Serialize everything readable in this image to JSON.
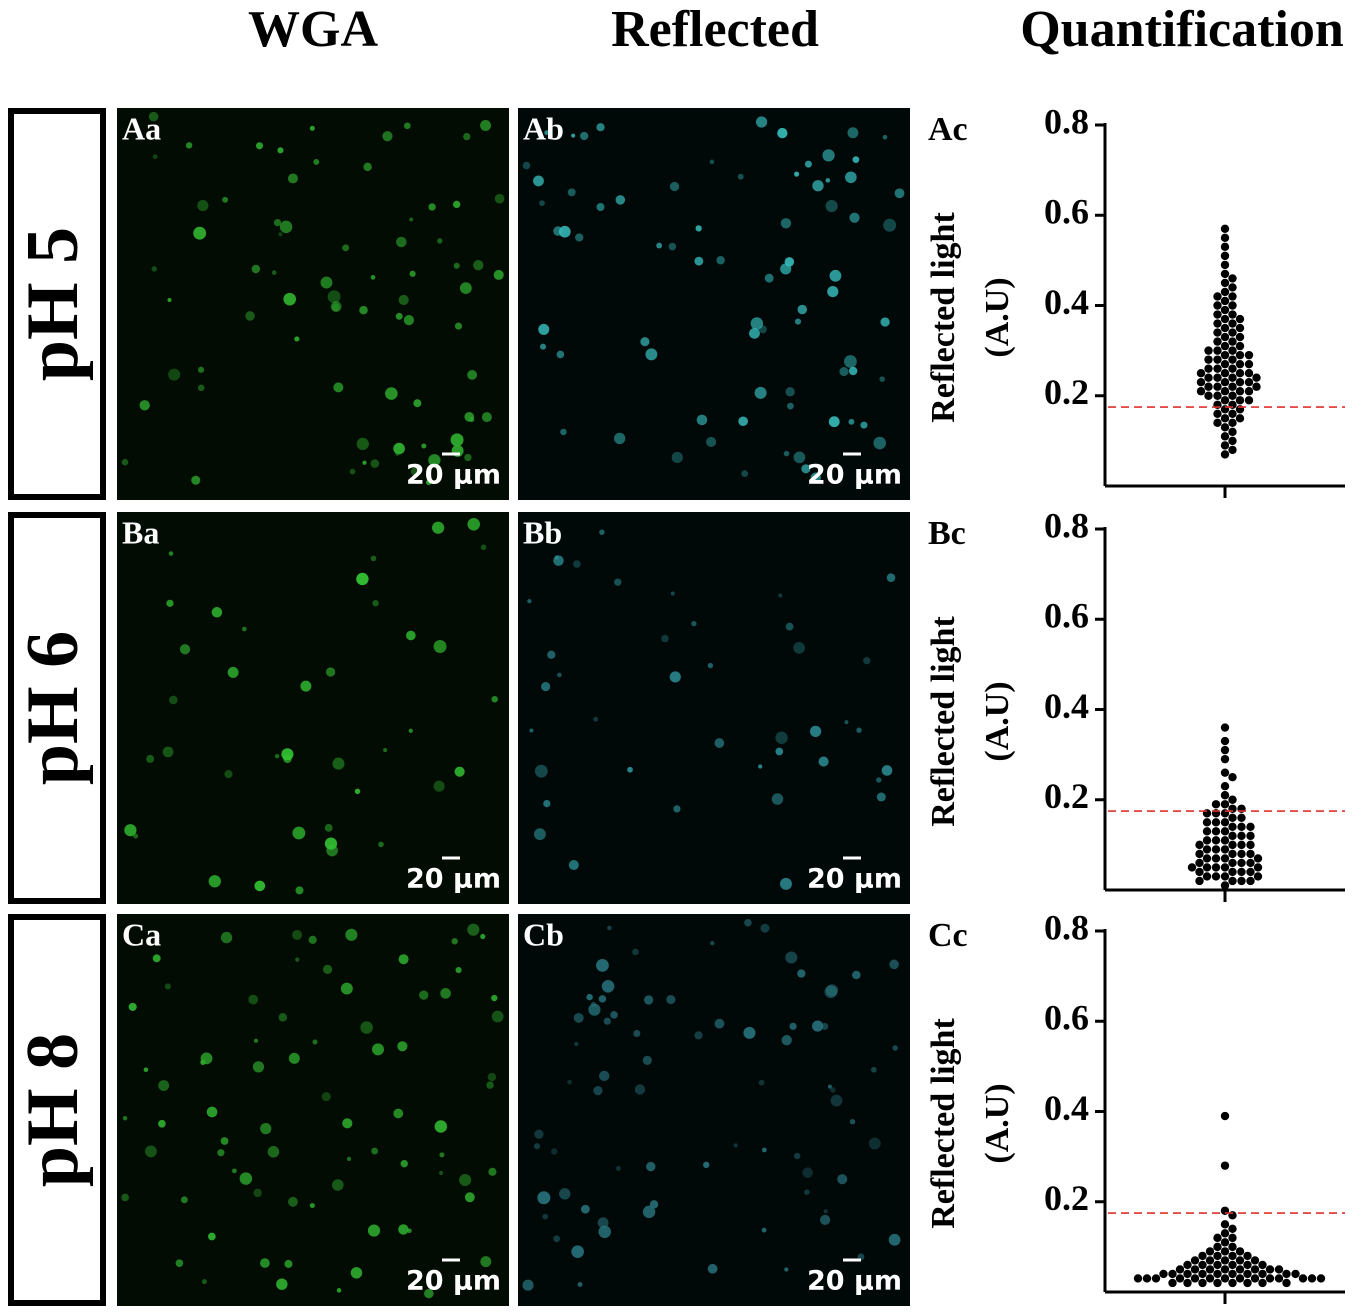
{
  "headers": [
    "WGA",
    "Reflected",
    "Quantification"
  ],
  "rows": [
    {
      "label": "pH 5",
      "panels": [
        "Aa",
        "Ab",
        "Ac"
      ]
    },
    {
      "label": "pH 6",
      "panels": [
        "Ba",
        "Bb",
        "Bc"
      ]
    },
    {
      "label": "pH 8",
      "panels": [
        "Ca",
        "Cb",
        "Cc"
      ]
    }
  ],
  "scale_bar": "20 µm",
  "chart_data": [
    {
      "type": "swarm",
      "ylabel": [
        "Reflected light",
        "(A.U)"
      ],
      "ylim": [
        0,
        0.8
      ],
      "yticks": [
        0.2,
        0.4,
        0.6,
        0.8
      ],
      "color": "#000000",
      "threshold": 0.175,
      "threshold_color": "#e0302c",
      "values": [
        0.57,
        0.55,
        0.53,
        0.51,
        0.49,
        0.47,
        0.46,
        0.45,
        0.44,
        0.43,
        0.42,
        0.42,
        0.41,
        0.4,
        0.4,
        0.39,
        0.38,
        0.38,
        0.37,
        0.37,
        0.36,
        0.36,
        0.35,
        0.35,
        0.34,
        0.34,
        0.33,
        0.33,
        0.32,
        0.32,
        0.31,
        0.31,
        0.3,
        0.3,
        0.3,
        0.29,
        0.29,
        0.29,
        0.28,
        0.28,
        0.28,
        0.27,
        0.27,
        0.27,
        0.26,
        0.26,
        0.26,
        0.25,
        0.25,
        0.25,
        0.25,
        0.24,
        0.24,
        0.24,
        0.24,
        0.23,
        0.23,
        0.23,
        0.23,
        0.22,
        0.22,
        0.22,
        0.22,
        0.21,
        0.21,
        0.21,
        0.21,
        0.2,
        0.2,
        0.2,
        0.19,
        0.19,
        0.19,
        0.18,
        0.18,
        0.17,
        0.17,
        0.16,
        0.16,
        0.15,
        0.15,
        0.14,
        0.14,
        0.13,
        0.12,
        0.11,
        0.1,
        0.09,
        0.08,
        0.07
      ]
    },
    {
      "type": "swarm",
      "ylabel": [
        "Reflected light",
        "(A.U)"
      ],
      "ylim": [
        0,
        0.8
      ],
      "yticks": [
        0.2,
        0.4,
        0.6,
        0.8
      ],
      "color": "#000000",
      "threshold": 0.175,
      "threshold_color": "#e0302c",
      "values": [
        0.36,
        0.33,
        0.31,
        0.29,
        0.26,
        0.25,
        0.23,
        0.21,
        0.2,
        0.19,
        0.19,
        0.18,
        0.18,
        0.17,
        0.17,
        0.17,
        0.16,
        0.16,
        0.15,
        0.15,
        0.15,
        0.14,
        0.14,
        0.14,
        0.13,
        0.13,
        0.13,
        0.12,
        0.12,
        0.12,
        0.11,
        0.11,
        0.11,
        0.1,
        0.1,
        0.1,
        0.1,
        0.09,
        0.09,
        0.09,
        0.08,
        0.08,
        0.08,
        0.08,
        0.07,
        0.07,
        0.07,
        0.07,
        0.06,
        0.06,
        0.06,
        0.06,
        0.05,
        0.05,
        0.05,
        0.05,
        0.05,
        0.04,
        0.04,
        0.04,
        0.04,
        0.03,
        0.03,
        0.03,
        0.03,
        0.02,
        0.02,
        0.02,
        0.02,
        0.01
      ]
    },
    {
      "type": "swarm",
      "ylabel": [
        "Reflected light",
        "(A.U)"
      ],
      "ylim": [
        0,
        0.8
      ],
      "yticks": [
        0.2,
        0.4,
        0.6,
        0.8
      ],
      "color": "#000000",
      "threshold": 0.175,
      "threshold_color": "#e0302c",
      "values": [
        0.39,
        0.28,
        0.18,
        0.17,
        0.15,
        0.14,
        0.13,
        0.12,
        0.12,
        0.11,
        0.1,
        0.1,
        0.09,
        0.09,
        0.09,
        0.08,
        0.08,
        0.08,
        0.08,
        0.07,
        0.07,
        0.07,
        0.07,
        0.07,
        0.06,
        0.06,
        0.06,
        0.06,
        0.06,
        0.06,
        0.05,
        0.05,
        0.05,
        0.05,
        0.05,
        0.05,
        0.05,
        0.05,
        0.04,
        0.04,
        0.04,
        0.04,
        0.04,
        0.04,
        0.04,
        0.04,
        0.04,
        0.04,
        0.03,
        0.03,
        0.03,
        0.03,
        0.03,
        0.03,
        0.03,
        0.03,
        0.03,
        0.03,
        0.03,
        0.03,
        0.03,
        0.03,
        0.02,
        0.02,
        0.02,
        0.02,
        0.02,
        0.02,
        0.02,
        0.02
      ]
    }
  ]
}
